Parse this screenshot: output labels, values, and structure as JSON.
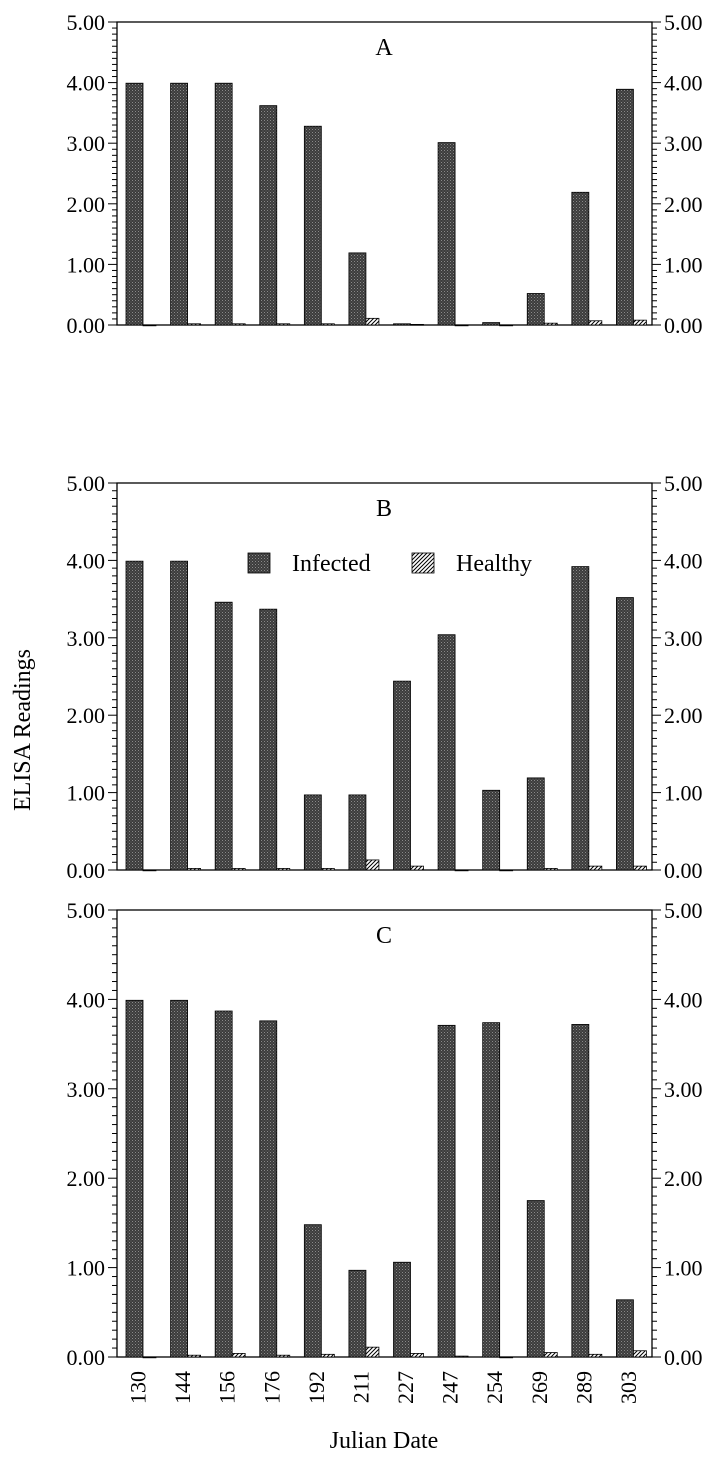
{
  "chart_data": {
    "type": "bar",
    "ylabel": "ELISA Readings",
    "xlabel": "Julian Date",
    "ylim": [
      0,
      5
    ],
    "yticks": [
      "0.00",
      "1.00",
      "2.00",
      "3.00",
      "4.00",
      "5.00"
    ],
    "categories": [
      "130",
      "144",
      "156",
      "176",
      "192",
      "211",
      "227",
      "247",
      "254",
      "269",
      "289",
      "303"
    ],
    "legend": {
      "placement": "top-center of panel B",
      "entries": [
        {
          "label": "Infected",
          "pattern": "dense-dots",
          "color": "#3a3a3a"
        },
        {
          "label": "Healthy",
          "pattern": "diagonal-hatch",
          "color": "#ffffff"
        }
      ]
    },
    "panels": [
      {
        "label": "A",
        "series": [
          {
            "name": "Infected",
            "values": [
              3.99,
              3.99,
              3.99,
              3.62,
              3.28,
              1.19,
              0.02,
              3.01,
              0.04,
              0.52,
              2.19,
              3.89
            ]
          },
          {
            "name": "Healthy",
            "values": [
              0.0,
              0.02,
              0.02,
              0.02,
              0.02,
              0.11,
              0.01,
              0.0,
              0.0,
              0.03,
              0.07,
              0.08
            ]
          }
        ]
      },
      {
        "label": "B",
        "series": [
          {
            "name": "Infected",
            "values": [
              3.99,
              3.99,
              3.46,
              3.37,
              0.97,
              0.97,
              2.44,
              3.04,
              1.03,
              1.19,
              3.92,
              3.52
            ]
          },
          {
            "name": "Healthy",
            "values": [
              0.0,
              0.02,
              0.02,
              0.02,
              0.02,
              0.13,
              0.05,
              0.0,
              0.0,
              0.02,
              0.05,
              0.05
            ]
          }
        ]
      },
      {
        "label": "C",
        "series": [
          {
            "name": "Infected",
            "values": [
              3.99,
              3.99,
              3.87,
              3.76,
              1.48,
              0.97,
              1.06,
              3.71,
              3.74,
              1.75,
              3.72,
              0.64
            ]
          },
          {
            "name": "Healthy",
            "values": [
              0.0,
              0.02,
              0.04,
              0.02,
              0.03,
              0.11,
              0.04,
              0.01,
              0.0,
              0.05,
              0.03,
              0.07
            ]
          }
        ]
      }
    ]
  }
}
